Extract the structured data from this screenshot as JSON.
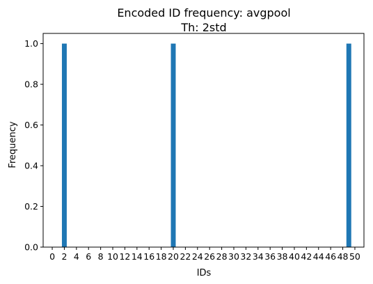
{
  "chart_data": {
    "type": "bar",
    "title": "Encoded ID frequency: avgpool",
    "subtitle": "Th: 2std",
    "xlabel": "IDs",
    "ylabel": "Frequency",
    "x": [
      2,
      20,
      49
    ],
    "values": [
      1.0,
      1.0,
      1.0
    ],
    "xlim": [
      -1.5,
      51.5
    ],
    "ylim": [
      0.0,
      1.05
    ],
    "xticks": [
      "0",
      "2",
      "4",
      "6",
      "8",
      "10",
      "12",
      "14",
      "16",
      "18",
      "20",
      "22",
      "24",
      "26",
      "28",
      "30",
      "32",
      "34",
      "36",
      "38",
      "40",
      "42",
      "44",
      "46",
      "48",
      "50"
    ],
    "yticks": [
      "0.0",
      "0.2",
      "0.4",
      "0.6",
      "0.8",
      "1.0"
    ],
    "bar_color": "#1f77b4",
    "grid": false,
    "legend": "none"
  }
}
